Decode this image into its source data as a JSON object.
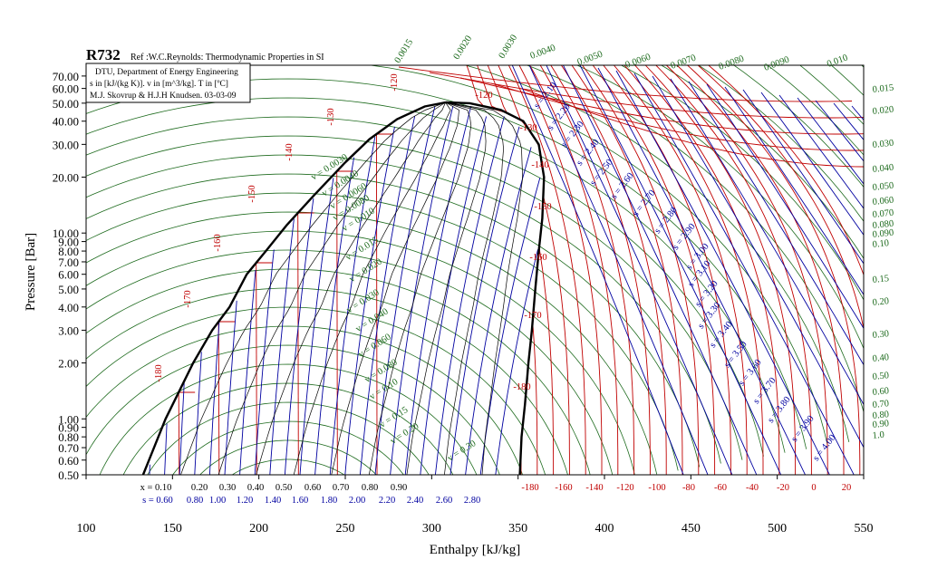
{
  "title": "R732",
  "reference": "Ref :W.C.Reynolds: Thermodynamic Properties in SI",
  "info_box": [
    "DTU, Department of Energy Engineering",
    "s in [kJ/(kg K)]. v in [m^3/kg]. T in [ºC]",
    "M.J. Skovrup & H.J.H Knudsen. 03-03-09"
  ],
  "colors": {
    "saturation": "#000000",
    "isotherm": "#c00000",
    "isentrope": "#0000a0",
    "isochore": "#1e6b1e",
    "frame": "#000000"
  },
  "chart_data": {
    "type": "line",
    "chart_kind": "pressure-enthalpy diagram",
    "xlabel": "Enthalpy [kJ/kg]",
    "ylabel": "Pressure [Bar]",
    "xlim": [
      100,
      550
    ],
    "ylim": [
      0.5,
      80
    ],
    "yscale": "log",
    "x_ticks": [
      "100",
      "150",
      "200",
      "250",
      "300",
      "350",
      "400",
      "450",
      "500",
      "550"
    ],
    "y_ticks": [
      "70.00",
      "60.00",
      "50.00",
      "40.00",
      "30.00",
      "20.00",
      "10.00",
      "9.00",
      "8.00",
      "7.00",
      "6.00",
      "5.00",
      "4.00",
      "3.00",
      "2.00",
      "1.00",
      "0.90",
      "0.80",
      "0.70",
      "0.60",
      "0.50"
    ],
    "saturated_liquid": [
      [
        133,
        0.5
      ],
      [
        146,
        1.0
      ],
      [
        162,
        2.0
      ],
      [
        173,
        3.0
      ],
      [
        183,
        4.0
      ],
      [
        193,
        6.0
      ],
      [
        204,
        8.0
      ],
      [
        216,
        11.0
      ],
      [
        232,
        16.0
      ],
      [
        250,
        24.0
      ],
      [
        264,
        32.0
      ],
      [
        280,
        41.0
      ],
      [
        296,
        48.0
      ],
      [
        308,
        50.5
      ]
    ],
    "saturated_vapor": [
      [
        308,
        50.5
      ],
      [
        322,
        50.0
      ],
      [
        340,
        46.0
      ],
      [
        353,
        40.0
      ],
      [
        362,
        30.0
      ],
      [
        365,
        20.0
      ],
      [
        364,
        12.0
      ],
      [
        362,
        8.0
      ],
      [
        360,
        5.0
      ],
      [
        358,
        3.0
      ],
      [
        356,
        2.0
      ],
      [
        354,
        1.2
      ],
      [
        352,
        0.8
      ],
      [
        351,
        0.5
      ]
    ],
    "critical_point": [
      308,
      50.5
    ],
    "quality_labels": [
      "x = 0.10",
      "0.20",
      "0.30",
      "0.40",
      "0.50",
      "0.60",
      "0.70",
      "0.80",
      "0.90"
    ],
    "entropy_bottom_labels": [
      "s = 0.60",
      "0.80",
      "1.00",
      "1.20",
      "1.40",
      "1.60",
      "1.80",
      "2.00",
      "2.20",
      "2.40",
      "2.60",
      "2.80"
    ],
    "temperature_bottom_labels": [
      "-180",
      "-160",
      "-140",
      "-120",
      "-100",
      "-80",
      "-60",
      "-40",
      "-20",
      "0",
      "20"
    ],
    "temperature_curve_labels": [
      "-180",
      "-170",
      "-160",
      "-150",
      "-140",
      "-130",
      "-120",
      "-120",
      "-130",
      "-140",
      "-150",
      "-160",
      "-170",
      "-180"
    ],
    "entropy_curve_labels": [
      "s = 2.10",
      "s = 2.20",
      "s = 2.30",
      "s = 2.40",
      "s = 2.50",
      "s = 2.60",
      "s = 2.70",
      "s = 2.80",
      "s = 2.90",
      "s = 3.00",
      "s = 3.10",
      "s = 3.20",
      "s = 3.30",
      "s = 3.40",
      "s = 3.50",
      "s = 3.60",
      "s = 3.70",
      "s = 3.80",
      "s = 3.90",
      "s = 4.00"
    ],
    "volume_top_labels": [
      "0.0015",
      "0.0020",
      "0.0030",
      "0.0040",
      "0.0050",
      "0.0060",
      "0.0070",
      "0.0080",
      "0.0090",
      "0.010"
    ],
    "volume_right_labels": [
      "0.015",
      "0.020",
      "0.030",
      "0.040",
      "0.050",
      "0.060",
      "0.070",
      "0.080",
      "0.090",
      "0.10",
      "0.15",
      "0.20",
      "0.30",
      "0.40",
      "0.50",
      "0.60",
      "0.70",
      "0.80",
      "0.90",
      "1.0"
    ],
    "volume_inner_labels": [
      "v = 0.0030",
      "v = 0.0040",
      "v = 0.0060",
      "v = 0.0080",
      "v = 0.010",
      "v = 0.015",
      "v = 0.020",
      "v = 0.030",
      "v = 0.040",
      "v = 0.060",
      "v = 0.080",
      "v = 0.10",
      "v = 0.15",
      "v = 0.20",
      "v = 0.30"
    ],
    "grid": false
  }
}
